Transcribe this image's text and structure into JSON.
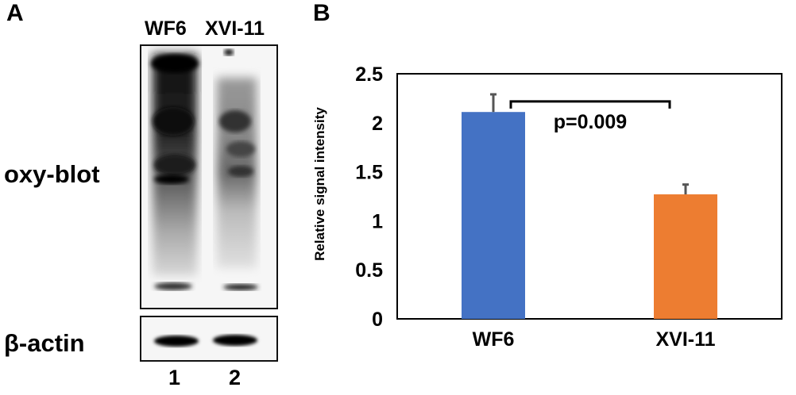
{
  "panel_a": {
    "letter": "A",
    "lanes": [
      "WF6",
      "XVI-11"
    ],
    "lane_numbers": [
      "1",
      "2"
    ],
    "blot_labels": {
      "oxy": "oxy-blot",
      "actin": "β-actin"
    }
  },
  "panel_b": {
    "letter": "B",
    "colors": {
      "WF6": "#4472C4",
      "XVI-11": "#ED7D31",
      "error_bar": "#555555"
    }
  },
  "chart_data": {
    "type": "bar",
    "categories": [
      "WF6",
      "XVI-11"
    ],
    "values": [
      2.11,
      1.27
    ],
    "errors": [
      0.18,
      0.1
    ],
    "ylabel": "Relative signal intensity",
    "xlabel": "",
    "ylim": [
      0,
      2.5
    ],
    "yticks": [
      "0",
      "0.5",
      "1",
      "1.5",
      "2",
      "2.5"
    ],
    "grid": false,
    "annotation": "p=0.009"
  }
}
